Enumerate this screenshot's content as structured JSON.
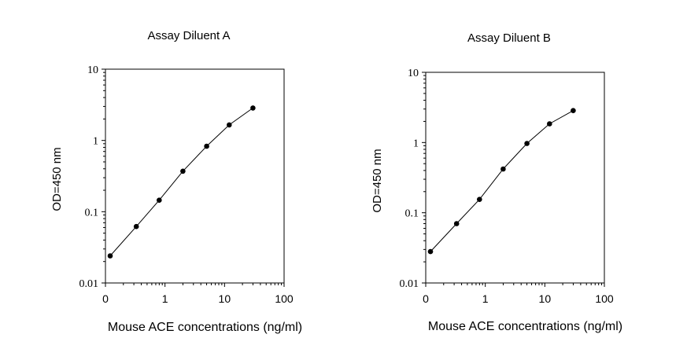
{
  "chart_data": [
    {
      "type": "line",
      "title": "Assay Diluent A",
      "xlabel": "Mouse ACE concentrations (ng/ml)",
      "ylabel": "OD=450 nm",
      "xscale": "log",
      "yscale": "log",
      "xlim": [
        0.1,
        100
      ],
      "ylim": [
        0.01,
        10
      ],
      "xticks": [
        "0",
        "1",
        "10",
        "100"
      ],
      "yticks": [
        "10",
        "1",
        "0.1",
        "0.01"
      ],
      "grid": false,
      "series": [
        {
          "x": [
            0.12,
            0.33,
            0.8,
            2.0,
            5.0,
            12.0,
            30.0
          ],
          "y": [
            0.024,
            0.062,
            0.145,
            0.37,
            0.83,
            1.65,
            2.85
          ]
        }
      ]
    },
    {
      "type": "line",
      "title": "Assay Diluent B",
      "xlabel": "Mouse ACE concentrations (ng/ml)",
      "ylabel": "OD=450 nm",
      "xscale": "log",
      "yscale": "log",
      "xlim": [
        0.1,
        100
      ],
      "ylim": [
        0.01,
        10
      ],
      "xticks": [
        "0",
        "1",
        "10",
        "100"
      ],
      "yticks": [
        "10",
        "1",
        "0.1",
        "0.01"
      ],
      "grid": false,
      "series": [
        {
          "x": [
            0.12,
            0.33,
            0.8,
            2.0,
            5.0,
            12.0,
            30.0
          ],
          "y": [
            0.028,
            0.07,
            0.155,
            0.42,
            0.97,
            1.85,
            2.85
          ]
        }
      ]
    }
  ]
}
